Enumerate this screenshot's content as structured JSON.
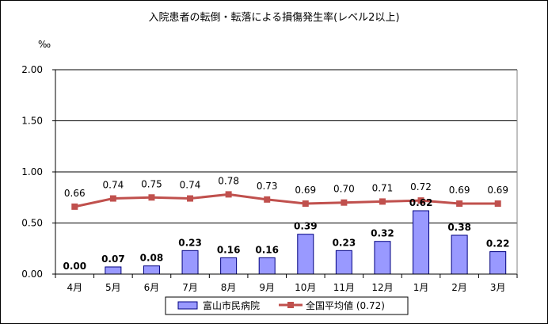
{
  "chart_data": {
    "type": "bar",
    "title": "入院患者の転倒・転落による損傷発生率(レベル2以上)",
    "ylabel": "‰",
    "ylim": [
      0,
      2.0
    ],
    "yticks": [
      "0.00",
      "0.50",
      "1.00",
      "1.50",
      "2.00"
    ],
    "categories": [
      "4月",
      "5月",
      "6月",
      "7月",
      "8月",
      "9月",
      "10月",
      "11月",
      "12月",
      "1月",
      "2月",
      "3月"
    ],
    "grid": true,
    "legend_position": "bottom",
    "series": [
      {
        "name": "富山市民病院",
        "kind": "bar",
        "color": "#9999ff",
        "values": [
          0.0,
          0.07,
          0.08,
          0.23,
          0.16,
          0.16,
          0.39,
          0.23,
          0.32,
          0.62,
          0.38,
          0.22
        ],
        "labels": [
          "0.00",
          "0.07",
          "0.08",
          "0.23",
          "0.16",
          "0.16",
          "0.39",
          "0.23",
          "0.32",
          "0.62",
          "0.38",
          "0.22"
        ]
      },
      {
        "name": "全国平均値 (0.72)",
        "kind": "line",
        "color": "#c0504d",
        "values": [
          0.66,
          0.74,
          0.75,
          0.74,
          0.78,
          0.73,
          0.69,
          0.7,
          0.71,
          0.72,
          0.69,
          0.69
        ],
        "labels": [
          "0.66",
          "0.74",
          "0.75",
          "0.74",
          "0.78",
          "0.73",
          "0.69",
          "0.70",
          "0.71",
          "0.72",
          "0.69",
          "0.69"
        ]
      }
    ]
  }
}
